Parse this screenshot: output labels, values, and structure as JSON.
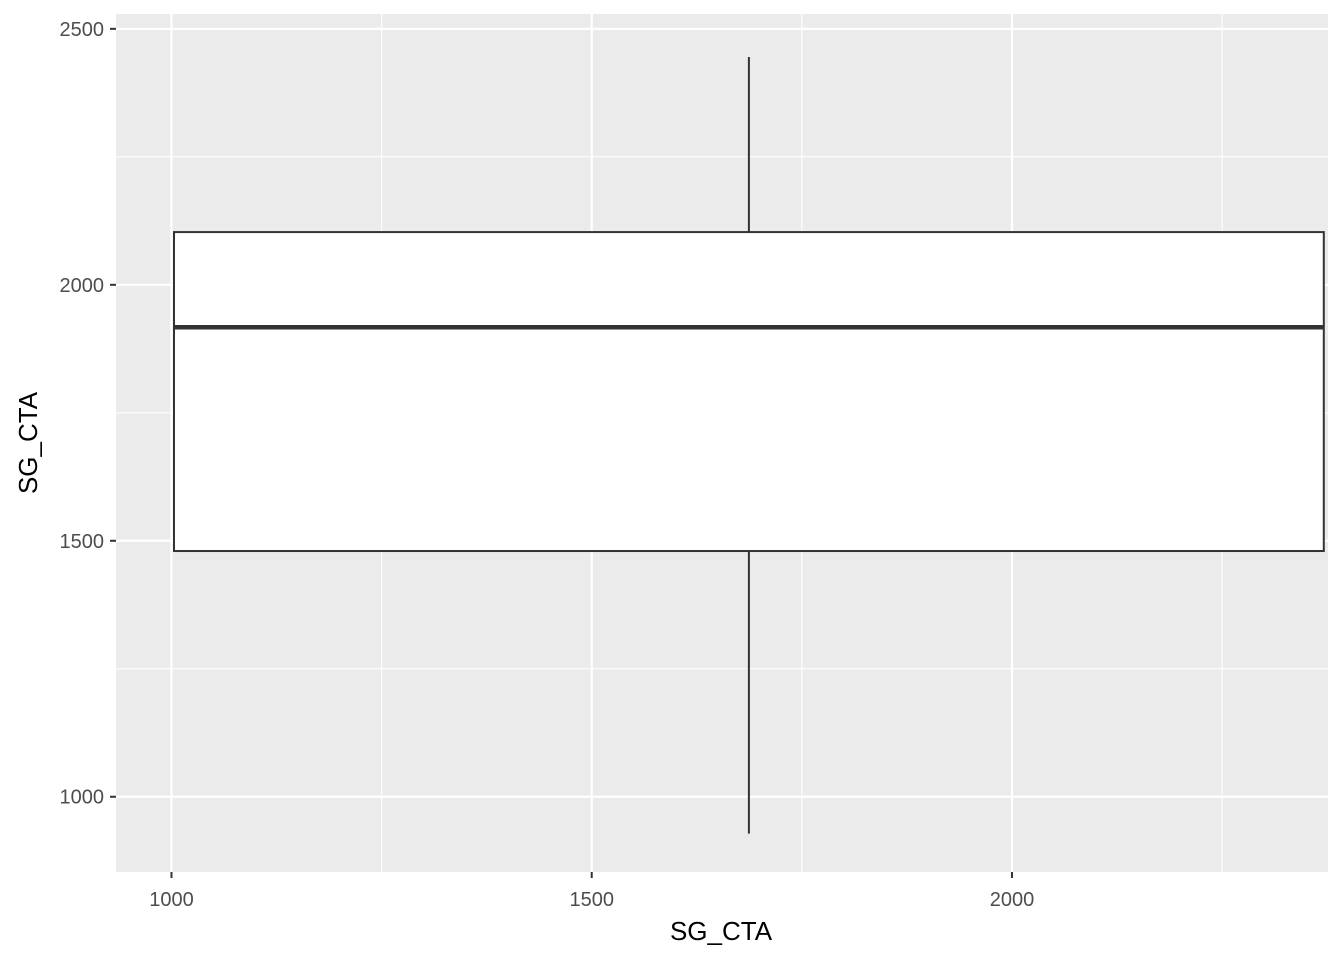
{
  "chart_data": {
    "type": "boxplot",
    "title": "",
    "xlabel": "SG_CTA",
    "ylabel": "SG_CTA",
    "xlim": [
      934,
      2376
    ],
    "ylim": [
      853,
      2529
    ],
    "x_ticks": [
      1000,
      1500,
      2000
    ],
    "x_tick_labels": [
      "1000",
      "1500",
      "2000"
    ],
    "y_ticks": [
      1000,
      1500,
      2000,
      2500
    ],
    "y_tick_labels": [
      "1000",
      "1500",
      "2000",
      "2500"
    ],
    "grid": true,
    "box": {
      "x_min": 1003,
      "x_max": 2371,
      "x_mid": 1687,
      "whisker_low": 928,
      "q1": 1480,
      "median": 1917,
      "q3": 2103,
      "whisker_high": 2445
    },
    "colors": {
      "panel_background": "#ebebeb",
      "grid": "#ffffff",
      "box_fill": "#ffffff",
      "box_line": "#333333",
      "tick_text": "#4d4d4d",
      "title_text": "#000000"
    }
  }
}
